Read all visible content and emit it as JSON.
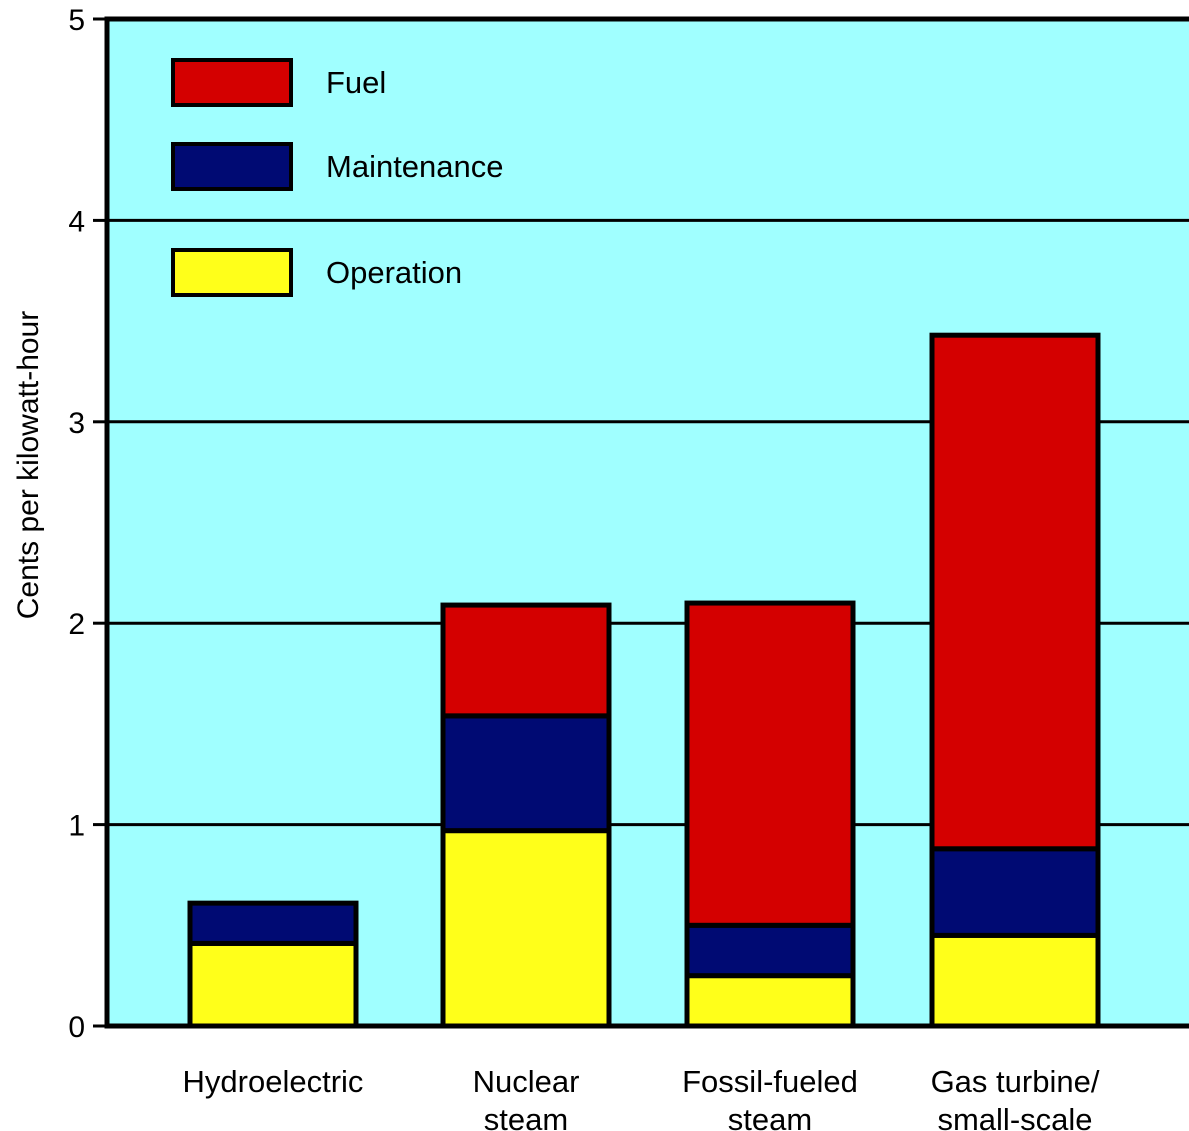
{
  "chart_data": {
    "type": "bar",
    "stacked": true,
    "categories": [
      [
        "Hydroelectric"
      ],
      [
        "Nuclear",
        "steam"
      ],
      [
        "Fossil-fueled",
        "steam"
      ],
      [
        "Gas turbine/",
        "small-scale"
      ]
    ],
    "series": [
      {
        "name": "Operation",
        "color": "#ffff1a",
        "values": [
          0.41,
          0.97,
          0.25,
          0.45
        ]
      },
      {
        "name": "Maintenance",
        "color": "#000a73",
        "values": [
          0.2,
          0.57,
          0.25,
          0.43
        ]
      },
      {
        "name": "Fuel",
        "color": "#d40000",
        "values": [
          0.0,
          0.55,
          1.6,
          2.55
        ]
      }
    ],
    "legend_order": [
      "Fuel",
      "Maintenance",
      "Operation"
    ],
    "ylabel": "Cents per kilowatt-hour",
    "ylim": [
      0,
      5
    ],
    "yticks": [
      "0",
      "1",
      "2",
      "3",
      "4",
      "5"
    ],
    "grid": true,
    "legend_position": "top-left",
    "background_color": "#a0ffff"
  }
}
